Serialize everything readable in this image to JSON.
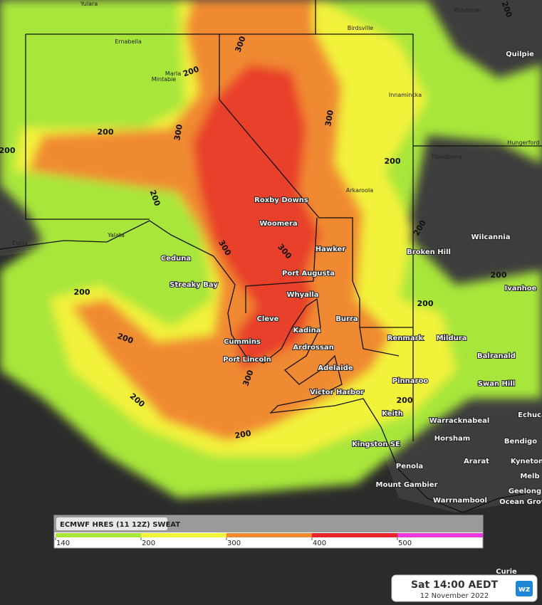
{
  "places": [
    "Yulara",
    "Windorah",
    "Birdsville",
    "Ernabella",
    "Quilpie",
    "Marla",
    "Mintabie",
    "Innamincka",
    "Hungerford",
    "Tibooburra",
    "Arkaroola",
    "Roxby Downs",
    "Woomera",
    "Yalata",
    "Wilcannia",
    "Eucla",
    "Hawker",
    "Ceduna",
    "Broken Hill",
    "Port Augusta",
    "Streaky Bay",
    "Ivanhoe",
    "Whyalla",
    "Cleve",
    "Burra",
    "Kadina",
    "Renmark",
    "Mildura",
    "Cummins",
    "Ardrossan",
    "Balranald",
    "Port Lincoln",
    "Adelaide",
    "Pinnaroo",
    "Swan Hill",
    "Victor Harbor",
    "Keith",
    "Echuca",
    "Warracknabeal",
    "Horsham",
    "Bendigo",
    "Kingston SE",
    "Ararat",
    "Kyneton",
    "Penola",
    "Mount Gambier",
    "Melb",
    "Geelong",
    "Warrnambool",
    "Ocean Grove",
    "Curie"
  ],
  "contour_labels": [
    300,
    200,
    200,
    300,
    300,
    200,
    200,
    200,
    300,
    300,
    200,
    200,
    200,
    200,
    200,
    200,
    300,
    200,
    200,
    200
  ],
  "legend": {
    "title": "ECMWF HRES (11 12Z) SWEAT",
    "ticks": [
      140,
      200,
      300,
      400,
      500
    ],
    "colors": [
      "#a8e63a",
      "#f2f23a",
      "#f08a30",
      "#e8242a",
      "#e83ae0"
    ]
  },
  "time_box": {
    "title": "Sat 14:00 AEDT",
    "date": "12 November 2022",
    "logo": "wz"
  }
}
